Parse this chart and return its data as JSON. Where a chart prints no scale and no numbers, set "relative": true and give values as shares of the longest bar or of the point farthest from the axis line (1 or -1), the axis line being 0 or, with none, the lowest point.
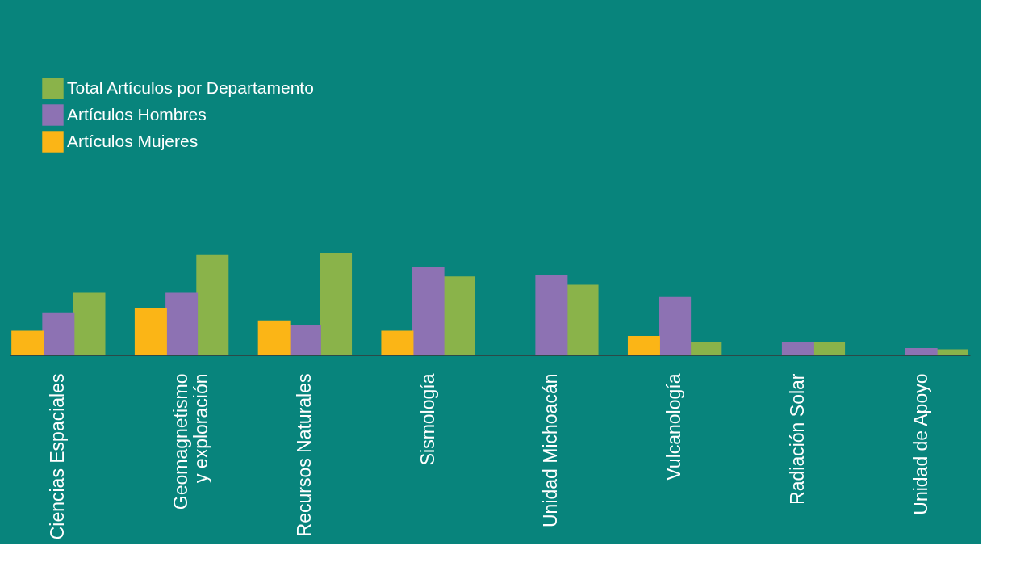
{
  "chart_data": {
    "type": "bar",
    "relative": true,
    "legend": "top left",
    "grid": false,
    "categories": [
      "Ciencias Espaciales",
      "Geomagnetismo\ny exploración",
      "Recursos Naturales",
      "Sismología",
      "Unidad Michoacán",
      "Vulcanología",
      "Radiación Solar",
      "Unidad de Apoyo"
    ],
    "series": [
      {
        "name": "Total Artículos por Departamento",
        "color": "#8ab34a",
        "values": [
          0.61,
          0.98,
          1,
          0.77,
          0.69,
          0.13,
          0.13,
          0.06
        ]
      },
      {
        "name": "Artículos Hombres",
        "color": "#8d72b3",
        "values": [
          0.42,
          0.61,
          0.3,
          0.86,
          0.78,
          0.57,
          0.13,
          0.07
        ]
      },
      {
        "name": "Artículos Mujeres",
        "color": "#fbb516",
        "values": [
          0.24,
          0.46,
          0.34,
          0.24,
          null,
          0.19,
          null,
          null
        ]
      }
    ]
  }
}
